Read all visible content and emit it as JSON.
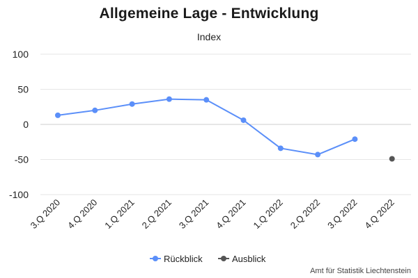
{
  "chart_data": {
    "type": "line",
    "title": "Allgemeine Lage - Entwicklung",
    "subtitle": "Index",
    "categories": [
      "3.Q 2020",
      "4.Q 2020",
      "1.Q 2021",
      "2.Q 2021",
      "3.Q 2021",
      "4.Q 2021",
      "1.Q 2022",
      "2.Q 2022",
      "3.Q 2022",
      "4.Q 2022"
    ],
    "ylim": [
      -100,
      100
    ],
    "yticks": [
      100,
      50,
      0,
      -50,
      -100
    ],
    "grid": true,
    "legend_position": "bottom-center",
    "series": [
      {
        "name": "Rückblick",
        "color": "#5b8ff9",
        "values": [
          13,
          20,
          29,
          36,
          35,
          6,
          -34,
          -43,
          -21,
          null
        ]
      },
      {
        "name": "Ausblick",
        "color": "#555555",
        "values": [
          null,
          null,
          null,
          null,
          null,
          null,
          null,
          null,
          null,
          -49
        ]
      }
    ]
  },
  "credit": "Amt für Statistik Liechtenstein"
}
